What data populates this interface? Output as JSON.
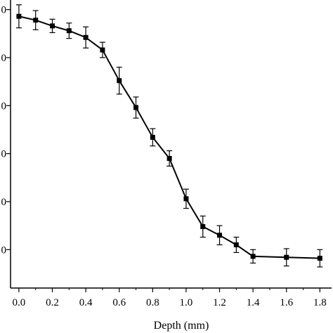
{
  "chart_data": {
    "type": "line",
    "title": "",
    "xlabel": "Depth (mm)",
    "ylabel": "",
    "xlim": [
      -0.05,
      1.87
    ],
    "ylim": [
      10,
      310
    ],
    "x_ticks": [
      0.0,
      0.2,
      0.4,
      0.6,
      0.8,
      1.0,
      1.2,
      1.4,
      1.6,
      1.8
    ],
    "x_tick_labels": [
      "0.0",
      "0.2",
      "0.4",
      "0.6",
      "0.8",
      "1.0",
      "1.2",
      "1.4",
      "1.6",
      "1.8"
    ],
    "y_ticks": [
      50,
      100,
      150,
      200,
      250,
      300
    ],
    "y_tick_labels_visible": [
      "0",
      "0",
      "0",
      "0",
      "0",
      "0"
    ],
    "grid": false,
    "legend": "none",
    "marker": "square",
    "line_color": "#000000",
    "series": [
      {
        "x": [
          0.0,
          0.1,
          0.2,
          0.3,
          0.4,
          0.5,
          0.6,
          0.7,
          0.8,
          0.9,
          1.0,
          1.1,
          1.2,
          1.3,
          1.4,
          1.6,
          1.8
        ],
        "values": [
          293,
          289,
          283,
          278,
          271,
          258,
          226,
          198,
          167,
          145,
          103,
          74,
          65,
          55,
          43,
          42,
          41
        ],
        "error": [
          12,
          10,
          7,
          8,
          11,
          8,
          14,
          11,
          9,
          8,
          10,
          11,
          10,
          8,
          7,
          9,
          9
        ]
      }
    ]
  }
}
